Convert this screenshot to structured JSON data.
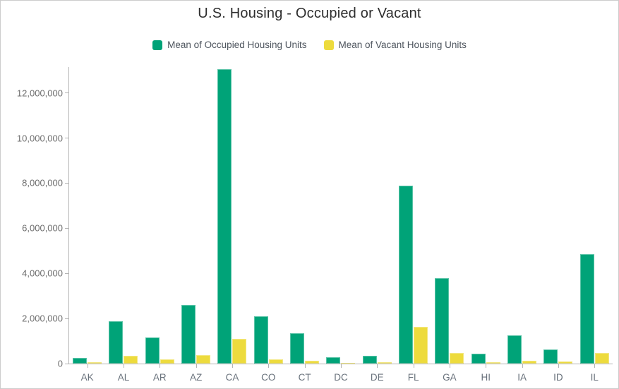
{
  "chart_data": {
    "type": "bar",
    "title": "U.S. Housing - Occupied or Vacant",
    "categories": [
      "AK",
      "AL",
      "AR",
      "AZ",
      "CA",
      "CO",
      "CT",
      "DC",
      "DE",
      "FL",
      "GA",
      "HI",
      "IA",
      "ID",
      "IL"
    ],
    "series": [
      {
        "name": "Mean of Occupied Housing Units",
        "color": "#00A378",
        "values": [
          250000,
          1880000,
          1150000,
          2600000,
          13050000,
          2110000,
          1360000,
          270000,
          350000,
          7900000,
          3800000,
          450000,
          1240000,
          630000,
          4850000
        ]
      },
      {
        "name": "Mean of Vacant Housing Units",
        "color": "#EDDB3D",
        "values": [
          60000,
          360000,
          190000,
          380000,
          1090000,
          200000,
          110000,
          30000,
          70000,
          1630000,
          480000,
          70000,
          120000,
          80000,
          460000
        ]
      }
    ],
    "xlabel": "",
    "ylabel": "",
    "ylim": [
      0,
      13150000
    ],
    "yticks": [
      0,
      2000000,
      4000000,
      6000000,
      8000000,
      10000000,
      12000000
    ],
    "grid": false,
    "legend_position": "top",
    "tick_label_format": "comma-separated integers"
  },
  "colors": {
    "occupied_series": "#00A378",
    "vacant_series": "#EDDB3D",
    "axis_line": "#b3b3b3",
    "title_text": "#2e2e2e",
    "axis_label_text": "#68717b",
    "figure_border": "#cccccc"
  }
}
